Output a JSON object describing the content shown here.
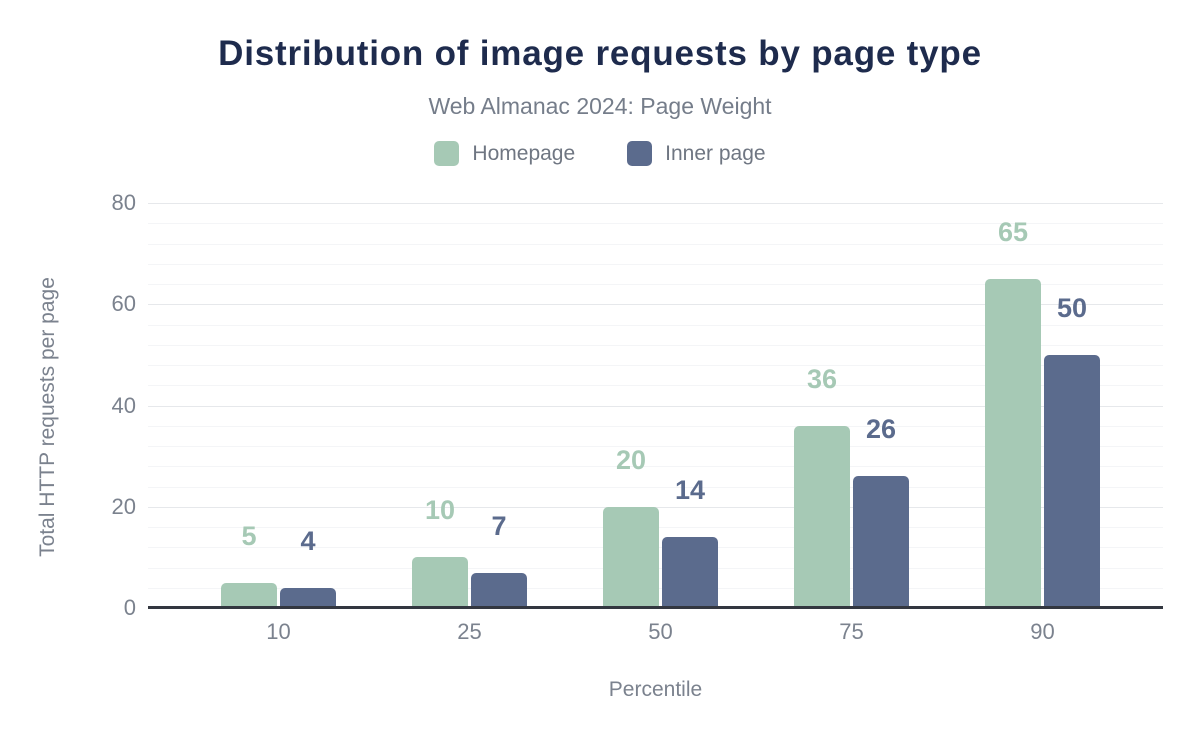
{
  "colors": {
    "title": "#1e2b4d",
    "subtitle": "#757d8a",
    "axis_text": "#7b828e",
    "legend_text": "#6f7682",
    "axis_line": "#333740",
    "grid_major": "#e6e8eb",
    "grid_minor": "#f4f5f7",
    "background": "#ffffff",
    "homepage": "#a6c9b5",
    "inner_page": "#5b6b8d"
  },
  "chart_data": {
    "type": "bar",
    "title": "Distribution of image requests by page type",
    "subtitle": "Web Almanac 2024: Page Weight",
    "xlabel": "Percentile",
    "ylabel": "Total HTTP requests per page",
    "categories": [
      "10",
      "25",
      "50",
      "75",
      "90"
    ],
    "series": [
      {
        "name": "Homepage",
        "color": "#a6c9b5",
        "values": [
          5,
          10,
          20,
          36,
          65
        ]
      },
      {
        "name": "Inner page",
        "color": "#5b6b8d",
        "values": [
          4,
          7,
          14,
          26,
          50
        ]
      }
    ],
    "ylim": [
      0,
      80
    ],
    "yticks": [
      80,
      60,
      40,
      20,
      0
    ],
    "minor_grid_step": 4,
    "grid": "horizontal",
    "legend_position": "top",
    "value_labels": "above-bars"
  }
}
